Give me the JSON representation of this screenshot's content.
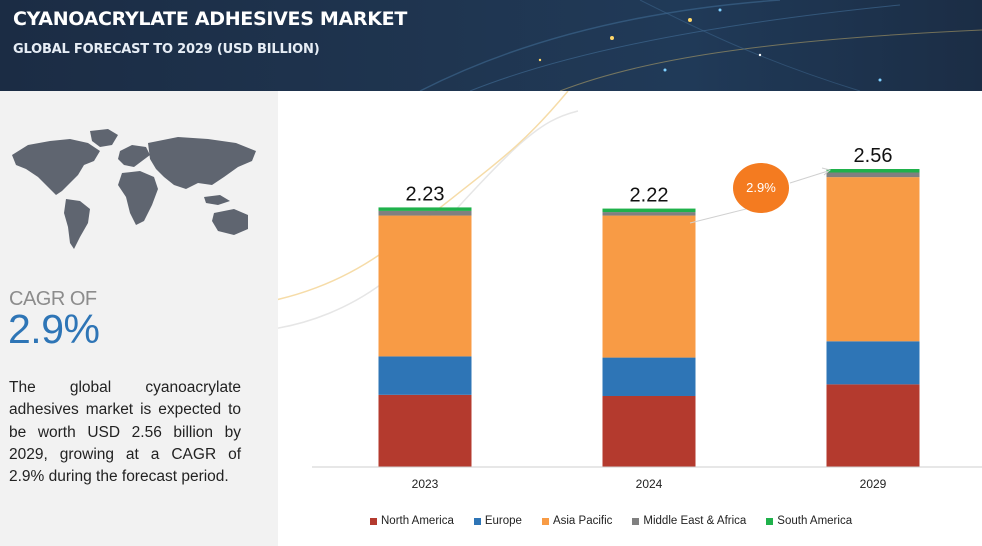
{
  "header": {
    "title": "CYANOACRYLATE ADHESIVES MARKET",
    "subtitle": "GLOBAL FORECAST TO 2029 (USD BILLION)"
  },
  "left_panel": {
    "cagr_label": "CAGR OF",
    "cagr_value": "2.9%",
    "description": "The global cyanoacrylate adhesives market is expected to be worth USD 2.56 billion by 2029, growing at a CAGR of 2.9% during the forecast period."
  },
  "cagr_bubble": "2.9%",
  "chart_data": {
    "type": "bar",
    "stacked": true,
    "categories": [
      "2023",
      "2024",
      "2029"
    ],
    "totals": [
      2.23,
      2.22,
      2.56
    ],
    "total_labels": [
      "2.23",
      "2.22",
      "2.56"
    ],
    "series": [
      {
        "name": "North America",
        "color": "#b43a2e",
        "values": [
          0.62,
          0.61,
          0.71
        ]
      },
      {
        "name": "Europe",
        "color": "#2e75b6",
        "values": [
          0.33,
          0.33,
          0.37
        ]
      },
      {
        "name": "Asia Pacific",
        "color": "#f89b45",
        "values": [
          1.21,
          1.22,
          1.41
        ]
      },
      {
        "name": "Middle East & Africa",
        "color": "#808080",
        "values": [
          0.04,
          0.03,
          0.04
        ]
      },
      {
        "name": "South America",
        "color": "#1fb14b",
        "values": [
          0.03,
          0.03,
          0.03
        ]
      }
    ],
    "ylim": [
      0,
      2.56
    ],
    "grid": false,
    "legend_position": "bottom"
  }
}
